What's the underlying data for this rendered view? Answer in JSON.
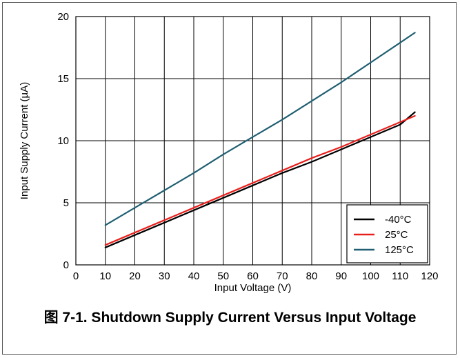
{
  "caption": "图 7-1. Shutdown Supply Current Versus Input Voltage",
  "chart_data": {
    "type": "line",
    "title": "",
    "xlabel": "Input Voltage (V)",
    "ylabel": "Input Supply Current (µA)",
    "xlim": [
      0,
      120
    ],
    "ylim": [
      0,
      20
    ],
    "x_ticks": [
      0,
      10,
      20,
      30,
      40,
      50,
      60,
      70,
      80,
      90,
      100,
      110,
      120
    ],
    "y_ticks": [
      0,
      5,
      10,
      15,
      20
    ],
    "grid": true,
    "legend_position": "bottom-right",
    "series": [
      {
        "name": "-40°C",
        "color": "#000000",
        "x": [
          10,
          20,
          30,
          40,
          50,
          60,
          70,
          80,
          90,
          100,
          110,
          115
        ],
        "y": [
          1.4,
          2.4,
          3.4,
          4.4,
          5.4,
          6.4,
          7.4,
          8.3,
          9.3,
          10.3,
          11.3,
          12.3
        ]
      },
      {
        "name": "25°C",
        "color": "#e8201c",
        "x": [
          10,
          20,
          30,
          40,
          50,
          60,
          70,
          80,
          90,
          100,
          110,
          115
        ],
        "y": [
          1.6,
          2.6,
          3.6,
          4.6,
          5.6,
          6.6,
          7.6,
          8.6,
          9.5,
          10.5,
          11.5,
          12.0
        ]
      },
      {
        "name": "125°C",
        "color": "#1f5f72",
        "x": [
          10,
          20,
          30,
          40,
          50,
          60,
          70,
          80,
          90,
          100,
          110,
          115
        ],
        "y": [
          3.2,
          4.6,
          6.0,
          7.4,
          8.9,
          10.3,
          11.7,
          13.2,
          14.7,
          16.3,
          17.9,
          18.7
        ]
      }
    ]
  }
}
